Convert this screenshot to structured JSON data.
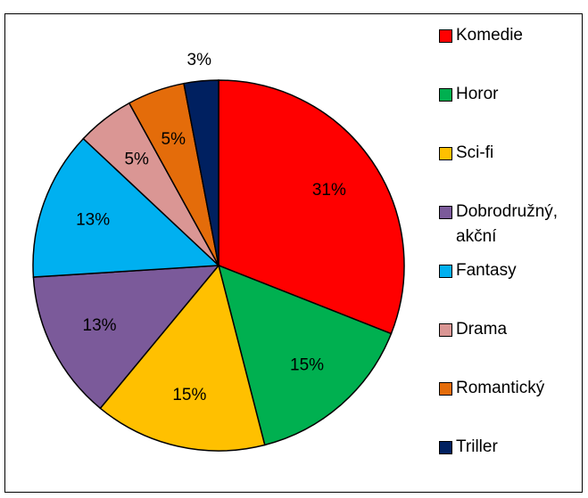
{
  "chart_data": {
    "type": "pie",
    "categories": [
      "Komedie",
      "Horor",
      "Sci-fi",
      "Dobrodružný, akční",
      "Fantasy",
      "Drama",
      "Romantický",
      "Triller"
    ],
    "values": [
      31,
      15,
      15,
      13,
      13,
      5,
      5,
      3
    ],
    "value_labels": [
      "31%",
      "15%",
      "15%",
      "13%",
      "13%",
      "5%",
      "5%",
      "3%"
    ],
    "colors": [
      "#ff0000",
      "#00b050",
      "#ffc000",
      "#7b5a9a",
      "#00b0f0",
      "#da9694",
      "#e46c0a",
      "#002060"
    ],
    "legend": "right"
  }
}
